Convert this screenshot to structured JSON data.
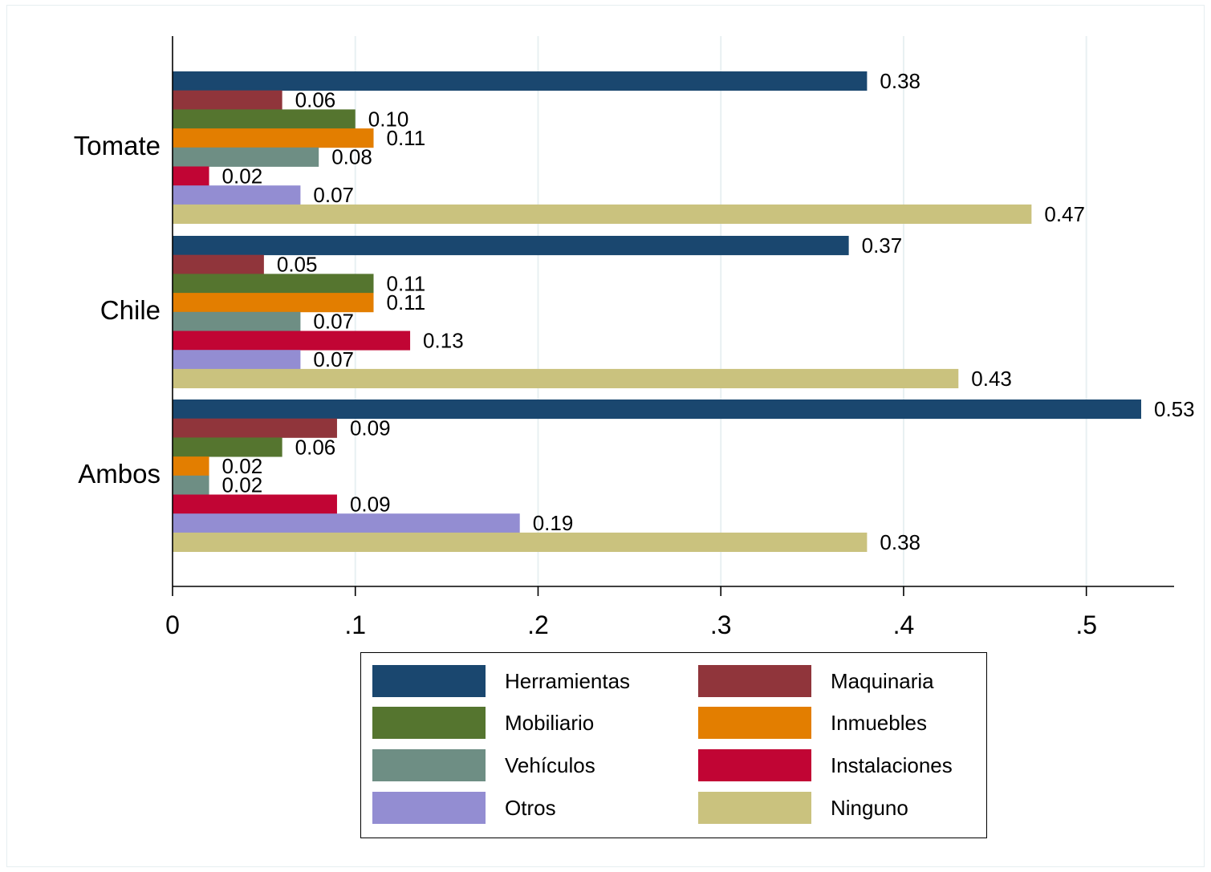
{
  "chart_data": {
    "type": "bar",
    "orientation": "horizontal",
    "categories": [
      "Tomate",
      "Chile",
      "Ambos"
    ],
    "series": [
      {
        "name": "Herramientas",
        "color": "#1a476f",
        "values": [
          0.38,
          0.37,
          0.53
        ]
      },
      {
        "name": "Maquinaria",
        "color": "#90353b",
        "values": [
          0.06,
          0.05,
          0.09
        ]
      },
      {
        "name": "Mobiliario",
        "color": "#55752f",
        "values": [
          0.1,
          0.11,
          0.06
        ]
      },
      {
        "name": "Inmuebles",
        "color": "#e37e00",
        "values": [
          0.11,
          0.11,
          0.02
        ]
      },
      {
        "name": "Vehículos",
        "color": "#6e8e84",
        "values": [
          0.08,
          0.07,
          0.02
        ]
      },
      {
        "name": "Instalaciones",
        "color": "#c10534",
        "values": [
          0.02,
          0.13,
          0.09
        ]
      },
      {
        "name": "Otros",
        "color": "#938dd2",
        "values": [
          0.07,
          0.07,
          0.19
        ]
      },
      {
        "name": "Ninguno",
        "color": "#cac27e",
        "values": [
          0.47,
          0.43,
          0.38
        ]
      }
    ],
    "value_labels": [
      [
        "0.38",
        "0.06",
        "0.10",
        "0.11",
        "0.08",
        "0.02",
        "0.07",
        "0.47"
      ],
      [
        "0.37",
        "0.05",
        "0.11",
        "0.11",
        "0.07",
        "0.13",
        "0.07",
        "0.43"
      ],
      [
        "0.53",
        "0.09",
        "0.06",
        "0.02",
        "0.02",
        "0.09",
        "0.19",
        "0.38"
      ]
    ],
    "xticks": [
      0,
      0.1,
      0.2,
      0.3,
      0.4,
      0.5
    ],
    "xtick_labels": [
      "0",
      ".1",
      ".2",
      ".3",
      ".4",
      ".5"
    ],
    "xlim": [
      0,
      0.548
    ],
    "grid": "vertical",
    "legend_position": "bottom",
    "title": "",
    "xlabel": "",
    "ylabel": ""
  }
}
